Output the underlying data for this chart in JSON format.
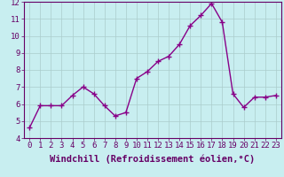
{
  "x": [
    0,
    1,
    2,
    3,
    4,
    5,
    6,
    7,
    8,
    9,
    10,
    11,
    12,
    13,
    14,
    15,
    16,
    17,
    18,
    19,
    20,
    21,
    22,
    23
  ],
  "y": [
    4.6,
    5.9,
    5.9,
    5.9,
    6.5,
    7.0,
    6.6,
    5.9,
    5.3,
    5.5,
    7.5,
    7.9,
    8.5,
    8.8,
    9.5,
    10.6,
    11.2,
    11.9,
    10.8,
    6.6,
    5.8,
    6.4,
    6.4,
    6.5
  ],
  "line_color": "#880088",
  "marker": "+",
  "marker_size": 4,
  "bg_color": "#c8eef0",
  "grid_color": "#aacccc",
  "outer_bg": "#c8eef0",
  "border_color": "#660066",
  "xlabel": "Windchill (Refroidissement éolien,°C)",
  "xlim": [
    -0.5,
    23.5
  ],
  "ylim": [
    4,
    12
  ],
  "yticks": [
    4,
    5,
    6,
    7,
    8,
    9,
    10,
    11,
    12
  ],
  "xticks": [
    0,
    1,
    2,
    3,
    4,
    5,
    6,
    7,
    8,
    9,
    10,
    11,
    12,
    13,
    14,
    15,
    16,
    17,
    18,
    19,
    20,
    21,
    22,
    23
  ],
  "xlabel_fontsize": 7.5,
  "tick_fontsize": 6.5,
  "line_width": 1.0,
  "marker_edge_width": 1.0
}
